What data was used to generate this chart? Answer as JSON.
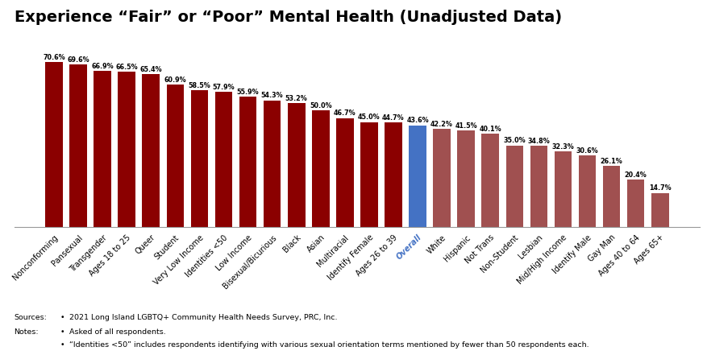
{
  "categories": [
    "Nonconforming",
    "Pansexual",
    "Transgender",
    "Ages 18 to 25",
    "Queer",
    "Student",
    "Very Low Income",
    "Identities <50",
    "Low Income",
    "Bisexual/Bicurious",
    "Black",
    "Asian",
    "Multiracial",
    "Identify Female",
    "Ages 26 to 39",
    "Overall",
    "White",
    "Hispanic",
    "Not Trans",
    "Non-Student",
    "Lesbian",
    "Mid/High Income",
    "Identify Male",
    "Gay Man",
    "Ages 40 to 64",
    "Ages 65+"
  ],
  "values": [
    70.6,
    69.6,
    66.9,
    66.5,
    65.4,
    60.9,
    58.5,
    57.9,
    55.9,
    54.3,
    53.2,
    50.0,
    46.7,
    45.0,
    44.7,
    43.6,
    42.2,
    41.5,
    40.1,
    35.0,
    34.8,
    32.3,
    30.6,
    26.1,
    20.4,
    14.7
  ],
  "colors": [
    "#8B0000",
    "#8B0000",
    "#8B0000",
    "#8B0000",
    "#8B0000",
    "#8B0000",
    "#8B0000",
    "#8B0000",
    "#8B0000",
    "#8B0000",
    "#8B0000",
    "#8B0000",
    "#8B0000",
    "#8B0000",
    "#8B0000",
    "#4472C4",
    "#A05050",
    "#A05050",
    "#A05050",
    "#A05050",
    "#A05050",
    "#A05050",
    "#A05050",
    "#A05050",
    "#A05050",
    "#A05050"
  ],
  "title": "Experience “Fair” or “Poor” Mental Health (Unadjusted Data)",
  "title_fontsize": 14,
  "bar_label_fontsize": 5.8,
  "xlabel_fontsize": 7.0,
  "source_line1": "2021 Long Island LGBTQ+ Community Health Needs Survey, PRC, Inc.",
  "source_line2": "Asked of all respondents.",
  "source_line3": "“Identities <50” includes respondents identifying with various sexual orientation terms mentioned by fewer than 50 respondents each.",
  "overall_label_color": "#4472C4",
  "background_color": "#FFFFFF",
  "ylim_max": 82
}
